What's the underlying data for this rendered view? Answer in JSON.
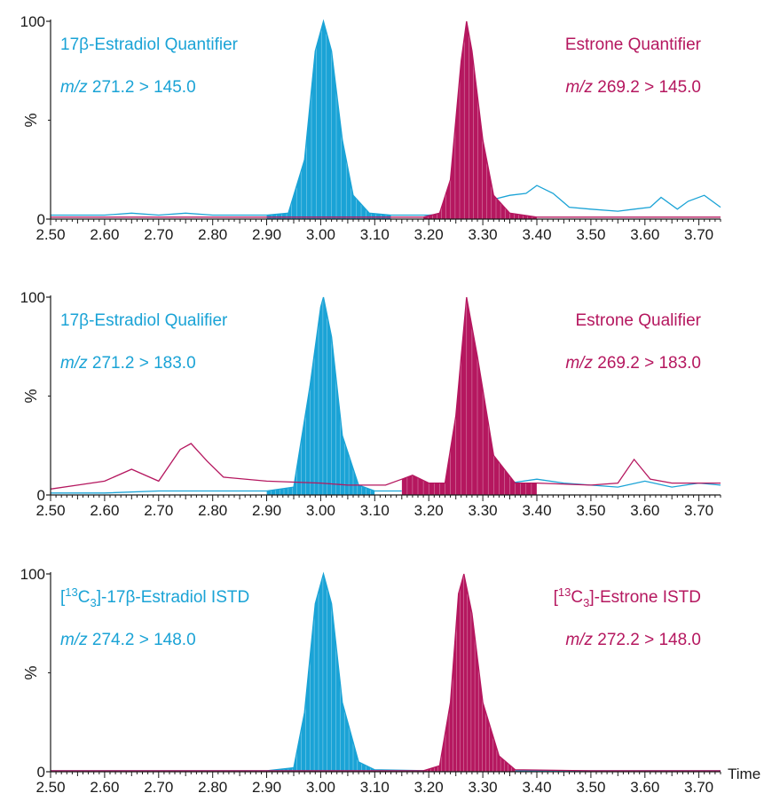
{
  "colors": {
    "estradiol": "#1aa3d6",
    "estrone": "#b5175f",
    "axis": "#1a1a1a"
  },
  "chart_data": [
    {
      "type": "line",
      "ylabel": "%",
      "xlim": [
        2.5,
        3.74
      ],
      "ylim": [
        0,
        100
      ],
      "yticks": [
        "0",
        "100"
      ],
      "xticks": [
        "2.50",
        "2.60",
        "2.70",
        "2.80",
        "2.90",
        "3.00",
        "3.10",
        "3.20",
        "3.30",
        "3.40",
        "3.50",
        "3.60",
        "3.70"
      ],
      "annotations": {
        "left_title": "17β-Estradiol Quantifier",
        "left_mz_prefix": "m/z",
        "left_mz": "271.2 > 145.0",
        "right_title": "Estrone Quantifier",
        "right_mz_prefix": "m/z",
        "right_mz": "269.2 > 145.0"
      },
      "series": [
        {
          "name": "17β-Estradiol Quantifier",
          "color": "#1aa3d6",
          "filled": true,
          "peak_x": 3.005,
          "x": [
            2.5,
            2.55,
            2.6,
            2.65,
            2.7,
            2.75,
            2.8,
            2.85,
            2.9,
            2.94,
            2.97,
            2.99,
            3.005,
            3.02,
            3.04,
            3.06,
            3.09,
            3.13,
            3.2,
            3.25,
            3.29,
            3.32,
            3.35,
            3.38,
            3.4,
            3.43,
            3.46,
            3.5,
            3.55,
            3.58,
            3.61,
            3.63,
            3.66,
            3.68,
            3.71,
            3.74
          ],
          "y": [
            2,
            2,
            2,
            3,
            2,
            3,
            2,
            2,
            2,
            3,
            30,
            85,
            100,
            85,
            40,
            12,
            3,
            2,
            2,
            3,
            5,
            10,
            12,
            13,
            17,
            13,
            6,
            5,
            4,
            5,
            6,
            11,
            5,
            9,
            12,
            6
          ]
        },
        {
          "name": "Estrone Quantifier",
          "color": "#b5175f",
          "filled": true,
          "peak_x": 3.27,
          "x": [
            2.5,
            2.6,
            2.7,
            2.8,
            2.9,
            3.0,
            3.1,
            3.19,
            3.22,
            3.24,
            3.26,
            3.27,
            3.28,
            3.3,
            3.32,
            3.35,
            3.4,
            3.5,
            3.6,
            3.74
          ],
          "y": [
            1,
            1,
            1,
            1,
            1,
            1,
            1,
            1,
            3,
            20,
            80,
            100,
            85,
            40,
            12,
            3,
            1,
            1,
            1,
            1
          ]
        }
      ]
    },
    {
      "type": "line",
      "ylabel": "%",
      "xlim": [
        2.5,
        3.74
      ],
      "ylim": [
        0,
        100
      ],
      "yticks": [
        "0",
        "100"
      ],
      "xticks": [
        "2.50",
        "2.60",
        "2.70",
        "2.80",
        "2.90",
        "3.00",
        "3.10",
        "3.20",
        "3.30",
        "3.40",
        "3.50",
        "3.60",
        "3.70"
      ],
      "annotations": {
        "left_title": "17β-Estradiol Qualifier",
        "left_mz_prefix": "m/z",
        "left_mz": "271.2 > 183.0",
        "right_title": "Estrone Qualifier",
        "right_mz_prefix": "m/z",
        "right_mz": "269.2 > 183.0"
      },
      "series": [
        {
          "name": "17β-Estradiol Qualifier",
          "color": "#1aa3d6",
          "filled": true,
          "peak_x": 3.005,
          "x": [
            2.5,
            2.6,
            2.7,
            2.8,
            2.9,
            2.95,
            2.98,
            3.0,
            3.005,
            3.02,
            3.04,
            3.07,
            3.1,
            3.2,
            3.3,
            3.35,
            3.4,
            3.45,
            3.5,
            3.55,
            3.6,
            3.65,
            3.7,
            3.74
          ],
          "y": [
            1,
            1,
            2,
            2,
            2,
            4,
            55,
            95,
            100,
            80,
            30,
            5,
            2,
            2,
            5,
            6,
            8,
            6,
            5,
            4,
            7,
            4,
            6,
            5
          ]
        },
        {
          "name": "Estrone Qualifier",
          "color": "#b5175f",
          "filled": true,
          "peak_x": 3.27,
          "x": [
            2.5,
            2.55,
            2.6,
            2.65,
            2.7,
            2.74,
            2.76,
            2.79,
            2.82,
            2.9,
            3.0,
            3.05,
            3.12,
            3.15,
            3.17,
            3.2,
            3.23,
            3.25,
            3.27,
            3.29,
            3.32,
            3.36,
            3.4,
            3.5,
            3.55,
            3.58,
            3.61,
            3.65,
            3.74
          ],
          "y": [
            3,
            5,
            7,
            13,
            7,
            23,
            26,
            17,
            9,
            7,
            6,
            5,
            5,
            8,
            10,
            6,
            6,
            40,
            100,
            70,
            20,
            6,
            6,
            5,
            6,
            18,
            8,
            6,
            6
          ]
        }
      ]
    },
    {
      "type": "line",
      "ylabel": "%",
      "xlim": [
        2.5,
        3.74
      ],
      "ylim": [
        0,
        100
      ],
      "yticks": [
        "0",
        "100"
      ],
      "xticks": [
        "2.50",
        "2.60",
        "2.70",
        "2.80",
        "2.90",
        "3.00",
        "3.10",
        "3.20",
        "3.30",
        "3.40",
        "3.50",
        "3.60",
        "3.70"
      ],
      "xlabel": "Time",
      "annotations": {
        "left_title_pre": "[",
        "left_title_sup": "13",
        "left_title_mid": "C",
        "left_title_sub": "3",
        "left_title_post": "]-17β-Estradiol ISTD",
        "left_mz_prefix": "m/z",
        "left_mz": "274.2 > 148.0",
        "right_title_pre": "[",
        "right_title_sup": "13",
        "right_title_mid": "C",
        "right_title_sub": "3",
        "right_title_post": "]-Estrone ISTD",
        "right_mz_prefix": "m/z",
        "right_mz": "272.2 > 148.0"
      },
      "series": [
        {
          "name": "[13C3]-17β-Estradiol ISTD",
          "color": "#1aa3d6",
          "filled": true,
          "peak_x": 3.005,
          "x": [
            2.5,
            2.7,
            2.9,
            2.95,
            2.97,
            2.99,
            3.005,
            3.02,
            3.04,
            3.07,
            3.1,
            3.2,
            3.4,
            3.6,
            3.74
          ],
          "y": [
            0.5,
            0.5,
            0.5,
            2,
            30,
            85,
            100,
            85,
            35,
            5,
            1,
            0.5,
            0.5,
            0.5,
            0.5
          ]
        },
        {
          "name": "[13C3]-Estrone ISTD",
          "color": "#b5175f",
          "filled": true,
          "peak_x": 3.265,
          "x": [
            2.5,
            2.7,
            2.9,
            3.1,
            3.19,
            3.22,
            3.24,
            3.255,
            3.265,
            3.28,
            3.3,
            3.33,
            3.36,
            3.5,
            3.74
          ],
          "y": [
            0.5,
            0.5,
            0.5,
            0.5,
            0.5,
            3,
            35,
            90,
            100,
            80,
            35,
            8,
            1,
            0.5,
            0.5
          ]
        }
      ]
    }
  ]
}
